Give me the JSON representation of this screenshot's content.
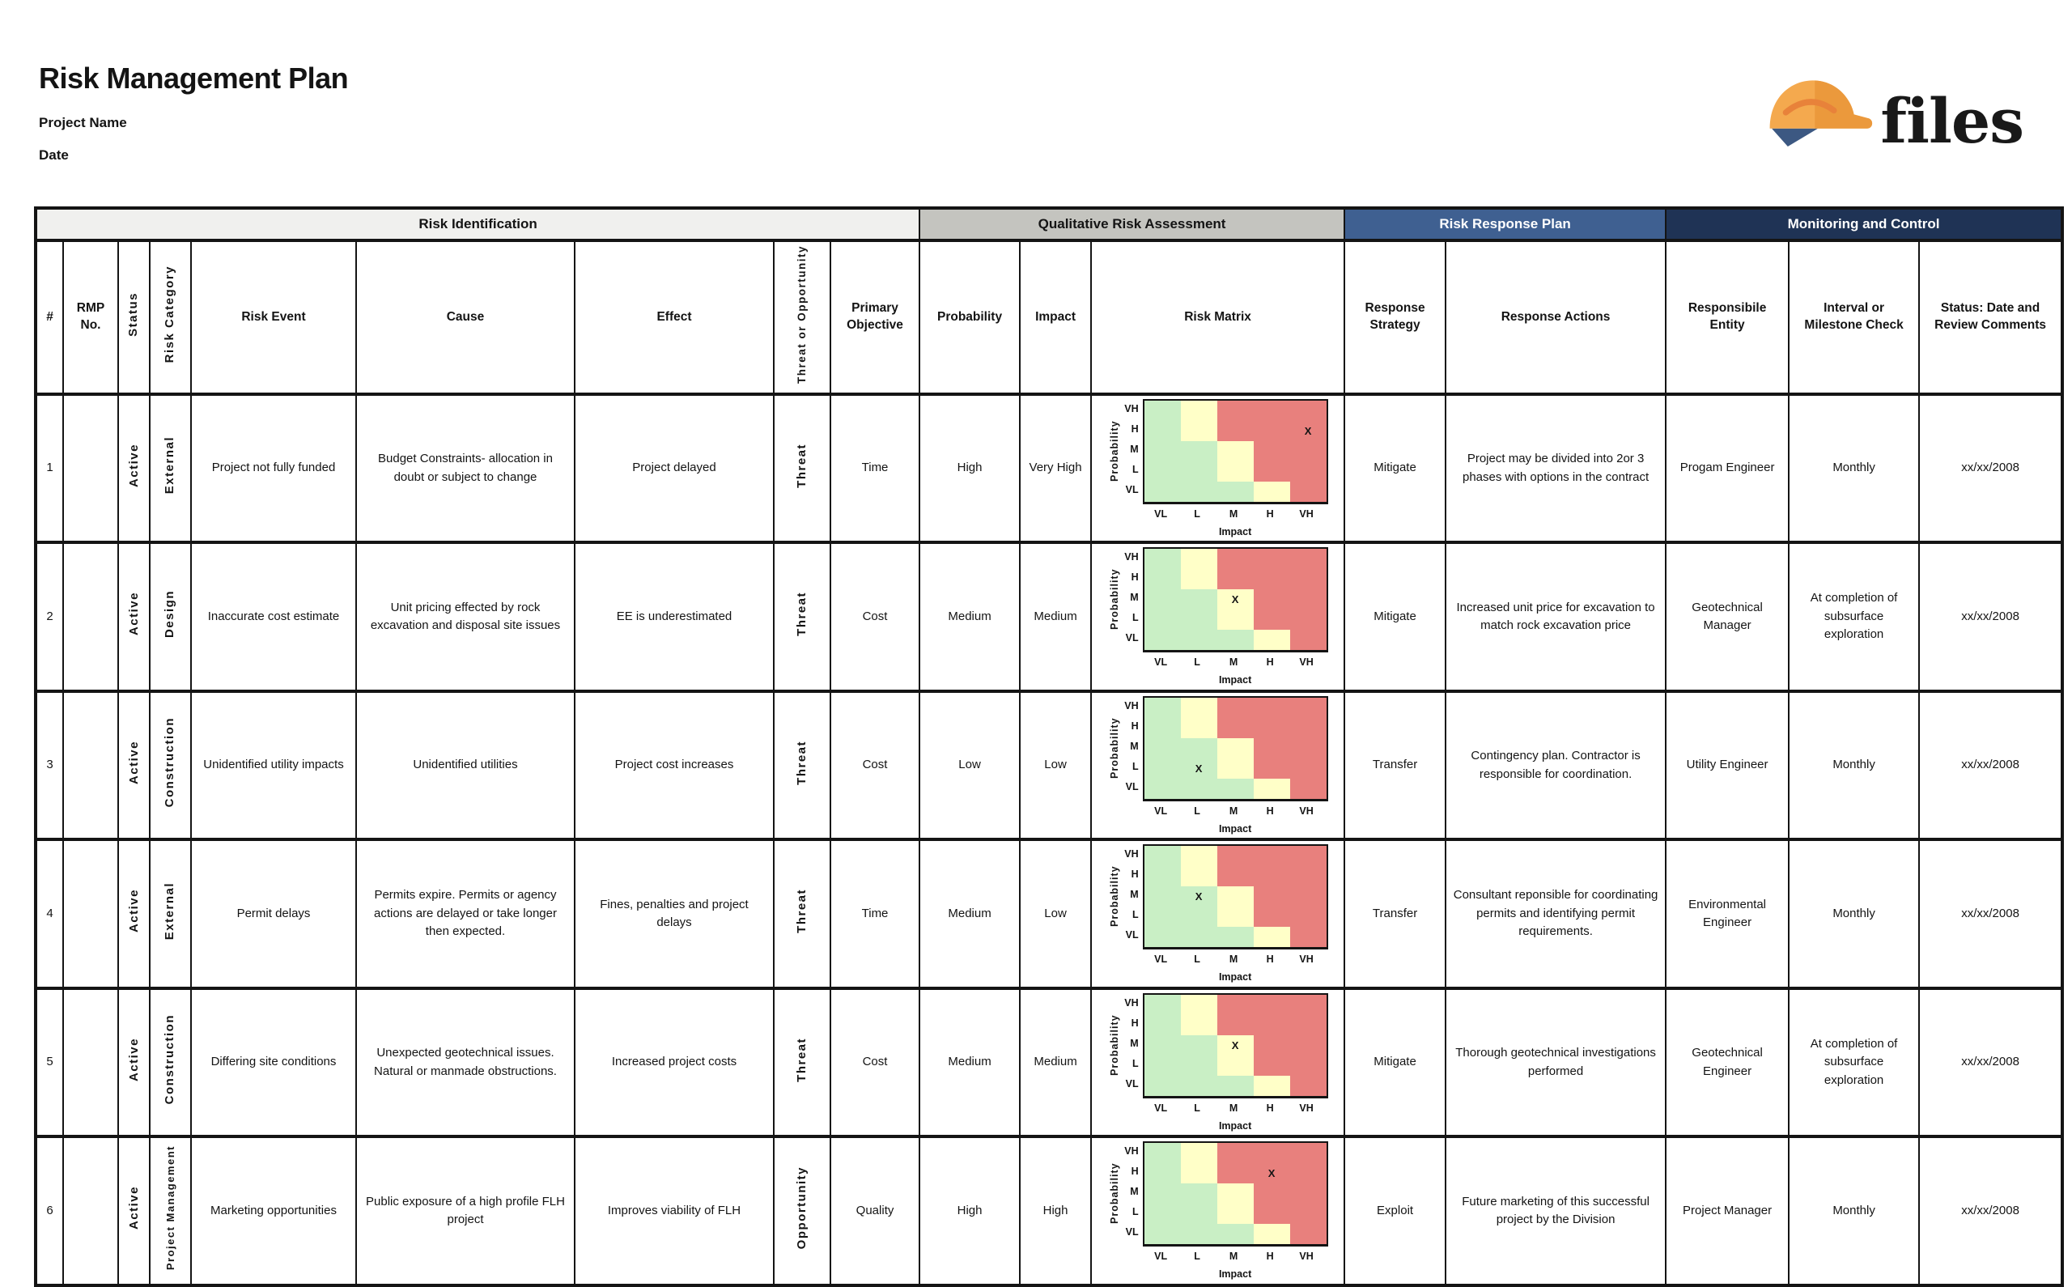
{
  "header": {
    "title": "Risk Management Plan",
    "project_label": "Project Name",
    "date_label": "Date",
    "logo_text": "files"
  },
  "colors": {
    "group_risk_identification_bg": "#f0f0ee",
    "group_qualitative_bg": "#c4c4bf",
    "group_response_bg": "#3f6091",
    "group_monitoring_bg": "#1f3355",
    "matrix_green": "#c9efc5",
    "matrix_yellow": "#ffffc8",
    "matrix_red": "#e8807d",
    "hat_orange": "#f4a94e",
    "hat_dark_orange": "#eb993c",
    "hat_navy": "#3c5882"
  },
  "groups": [
    {
      "label": "Risk Identification",
      "span": 9
    },
    {
      "label": "Qualitative Risk Assessment",
      "span": 3
    },
    {
      "label": "Risk Response Plan",
      "span": 2
    },
    {
      "label": "Monitoring and Control",
      "span": 3
    }
  ],
  "columns": [
    {
      "label": "#"
    },
    {
      "label": "RMP No."
    },
    {
      "label": "Status",
      "vertical": true
    },
    {
      "label": "Risk Category",
      "vertical": true
    },
    {
      "label": "Risk Event"
    },
    {
      "label": "Cause"
    },
    {
      "label": "Effect"
    },
    {
      "label": "Threat or Opportunity",
      "vertical": true
    },
    {
      "label": "Primary Objective"
    },
    {
      "label": "Probability"
    },
    {
      "label": "Impact"
    },
    {
      "label": "Risk Matrix"
    },
    {
      "label": "Response Strategy"
    },
    {
      "label": "Response Actions"
    },
    {
      "label": "Responsibile Entity"
    },
    {
      "label": "Interval or Milestone Check"
    },
    {
      "label": "Status: Date and Review Comments"
    }
  ],
  "matrix": {
    "y_axis": "Probability",
    "x_axis": "Impact",
    "prob_labels": [
      "VH",
      "H",
      "M",
      "L",
      "VL"
    ],
    "impact_labels": [
      "VL",
      "L",
      "M",
      "H",
      "VH"
    ],
    "marker": "X",
    "colors": {
      "g": "#c9efc5",
      "y": "#ffffc8",
      "r": "#e8807d"
    },
    "pattern": [
      [
        "g",
        "y",
        "r",
        "r",
        "r"
      ],
      [
        "g",
        "y",
        "r",
        "r",
        "r"
      ],
      [
        "g",
        "g",
        "y",
        "r",
        "r"
      ],
      [
        "g",
        "g",
        "y",
        "r",
        "r"
      ],
      [
        "g",
        "g",
        "g",
        "y",
        "r"
      ]
    ]
  },
  "rows": [
    {
      "num": "1",
      "rmp_no": "",
      "status": "Active",
      "category": "External",
      "event": "Project not fully funded",
      "cause": "Budget Constraints- allocation in doubt or subject to change",
      "effect": "Project delayed",
      "threat_or_opportunity": "Threat",
      "primary_objective": "Time",
      "probability": "High",
      "impact": "Very High",
      "marker_row": 1,
      "marker_col": 4,
      "strategy": "Mitigate",
      "actions": "Project may be divided into 2or 3 phases with options in the contract",
      "entity": "Progam Engineer",
      "interval": "Monthly",
      "status_date": "xx/xx/2008"
    },
    {
      "num": "2",
      "rmp_no": "",
      "status": "Active",
      "category": "Design",
      "event": "Inaccurate cost estimate",
      "cause": "Unit pricing effected by rock excavation and disposal site issues",
      "effect": "EE is underestimated",
      "threat_or_opportunity": "Threat",
      "primary_objective": "Cost",
      "probability": "Medium",
      "impact": "Medium",
      "marker_row": 2,
      "marker_col": 2,
      "strategy": "Mitigate",
      "actions": "Increased unit price for excavation to match rock excavation price",
      "entity": "Geotechnical Manager",
      "interval": "At completion of subsurface exploration",
      "status_date": "xx/xx/2008"
    },
    {
      "num": "3",
      "rmp_no": "",
      "status": "Active",
      "category": "Construction",
      "event": "Unidentified utility impacts",
      "cause": "Unidentified utilities",
      "effect": "Project cost increases",
      "threat_or_opportunity": "Threat",
      "primary_objective": "Cost",
      "probability": "Low",
      "impact": "Low",
      "marker_row": 3,
      "marker_col": 1,
      "strategy": "Transfer",
      "actions": "Contingency plan.  Contractor is responsible for coordination.",
      "entity": "Utility Engineer",
      "interval": "Monthly",
      "status_date": "xx/xx/2008"
    },
    {
      "num": "4",
      "rmp_no": "",
      "status": "Active",
      "category": "External",
      "event": "Permit delays",
      "cause": "Permits expire.  Permits or agency actions are delayed or take longer then expected.",
      "effect": "Fines,  penalties and project delays",
      "threat_or_opportunity": "Threat",
      "primary_objective": "Time",
      "probability": "Medium",
      "impact": "Low",
      "marker_row": 2,
      "marker_col": 1,
      "strategy": "Transfer",
      "actions": "Consultant reponsible for coordinating permits and identifying permit requirements.",
      "entity": "Environmental Engineer",
      "interval": "Monthly",
      "status_date": "xx/xx/2008"
    },
    {
      "num": "5",
      "rmp_no": "",
      "status": "Active",
      "category": "Construction",
      "event": "Differing site conditions",
      "cause": "Unexpected geotechnical issues.  Natural or manmade obstructions.",
      "effect": "Increased project costs",
      "threat_or_opportunity": "Threat",
      "primary_objective": "Cost",
      "probability": "Medium",
      "impact": "Medium",
      "marker_row": 2,
      "marker_col": 2,
      "strategy": "Mitigate",
      "actions": "Thorough geotechnical investigations performed",
      "entity": "Geotechnical Engineer",
      "interval": "At completion of subsurface exploration",
      "status_date": "xx/xx/2008"
    },
    {
      "num": "6",
      "rmp_no": "",
      "status": "Active",
      "category": "Project Management",
      "event": "Marketing opportunities",
      "cause": "Public exposure of a high profile FLH project",
      "effect": "Improves viability of FLH",
      "threat_or_opportunity": "Opportunity",
      "primary_objective": "Quality",
      "probability": "High",
      "impact": "High",
      "marker_row": 1,
      "marker_col": 3,
      "strategy": "Exploit",
      "actions": "Future marketing of this successful project by the Division",
      "entity": "Project Manager",
      "interval": "Monthly",
      "status_date": "xx/xx/2008"
    }
  ]
}
